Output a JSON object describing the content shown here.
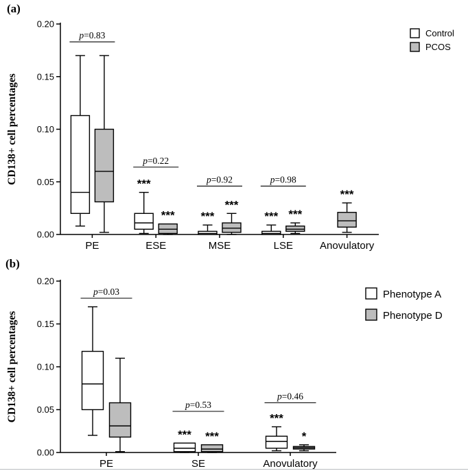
{
  "figure": {
    "background": "#ffffff",
    "panel_a_tag": "(a)",
    "panel_b_tag": "(b)"
  },
  "chart_data": [
    {
      "type": "box",
      "tag": "(a)",
      "title": "",
      "ylabel": "CD138+ cell percentages",
      "xlabel": "",
      "ylim": [
        0,
        0.2
      ],
      "yticks": [
        0,
        0.05,
        0.1,
        0.15,
        0.2
      ],
      "ytick_labels": [
        "0.00",
        "0.05",
        "0.10",
        "0.15",
        "0.20"
      ],
      "categories": [
        "PE",
        "ESE",
        "MSE",
        "LSE",
        "Anovulatory"
      ],
      "grid": false,
      "legend_position": "top-right",
      "series": [
        {
          "name": "Control",
          "fill": "#ffffff",
          "boxes": [
            {
              "low": 0.008,
              "q1": 0.02,
              "median": 0.04,
              "q3": 0.113,
              "high": 0.17,
              "stars": ""
            },
            {
              "low": 0.001,
              "q1": 0.005,
              "median": 0.011,
              "q3": 0.02,
              "high": 0.04,
              "stars": "***"
            },
            {
              "low": 0,
              "q1": 0,
              "median": 0.001,
              "q3": 0.003,
              "high": 0.009,
              "stars": "***"
            },
            {
              "low": 0,
              "q1": 0,
              "median": 0.001,
              "q3": 0.003,
              "high": 0.009,
              "stars": "***"
            },
            null
          ]
        },
        {
          "name": "PCOS",
          "fill": "#bdbdbd",
          "boxes": [
            {
              "low": 0.002,
              "q1": 0.031,
              "median": 0.06,
              "q3": 0.1,
              "high": 0.17,
              "stars": ""
            },
            {
              "low": 0,
              "q1": 0.001,
              "median": 0.005,
              "q3": 0.01,
              "high": 0.01,
              "stars": "***"
            },
            {
              "low": 0,
              "q1": 0.002,
              "median": 0.006,
              "q3": 0.011,
              "high": 0.02,
              "stars": "***"
            },
            {
              "low": 0.001,
              "q1": 0.003,
              "median": 0.005,
              "q3": 0.008,
              "high": 0.011,
              "stars": "***"
            },
            {
              "low": 0.002,
              "q1": 0.007,
              "median": 0.013,
              "q3": 0.021,
              "high": 0.03,
              "stars": "***"
            }
          ]
        }
      ],
      "comparisons": [
        {
          "category_index": 0,
          "label": "p=0.83",
          "height": 0.183
        },
        {
          "category_index": 1,
          "label": "p=0.22",
          "height": 0.064
        },
        {
          "category_index": 2,
          "label": "p=0.92",
          "height": 0.046
        },
        {
          "category_index": 3,
          "label": "p=0.98",
          "height": 0.046
        }
      ]
    },
    {
      "type": "box",
      "tag": "(b)",
      "title": "",
      "ylabel": "CD138+ cell percentages",
      "xlabel": "",
      "ylim": [
        0,
        0.2
      ],
      "yticks": [
        0,
        0.05,
        0.1,
        0.15,
        0.2
      ],
      "ytick_labels": [
        "0.00",
        "0.05",
        "0.10",
        "0.15",
        "0.20"
      ],
      "categories": [
        "PE",
        "SE",
        "Anovulatory"
      ],
      "grid": false,
      "legend_position": "top-right",
      "series": [
        {
          "name": "Phenotype A",
          "fill": "#ffffff",
          "boxes": [
            {
              "low": 0.02,
              "q1": 0.05,
              "median": 0.08,
              "q3": 0.118,
              "high": 0.17,
              "stars": ""
            },
            {
              "low": 0,
              "q1": 0.001,
              "median": 0.005,
              "q3": 0.011,
              "high": 0.011,
              "stars": "***"
            },
            {
              "low": 0.002,
              "q1": 0.005,
              "median": 0.013,
              "q3": 0.019,
              "high": 0.03,
              "stars": "***"
            }
          ]
        },
        {
          "name": "Phenotype D",
          "fill": "#bdbdbd",
          "boxes": [
            {
              "low": 0.001,
              "q1": 0.018,
              "median": 0.031,
              "q3": 0.058,
              "high": 0.11,
              "stars": ""
            },
            {
              "low": 0,
              "q1": 0.001,
              "median": 0.004,
              "q3": 0.009,
              "high": 0.009,
              "stars": "***"
            },
            {
              "low": 0.002,
              "q1": 0.004,
              "median": 0.0055,
              "q3": 0.007,
              "high": 0.009,
              "stars": "*"
            }
          ]
        }
      ],
      "comparisons": [
        {
          "category_index": 0,
          "label": "p=0.03",
          "height": 0.18
        },
        {
          "category_index": 1,
          "label": "p=0.53",
          "height": 0.048
        },
        {
          "category_index": 2,
          "label": "p=0.46",
          "height": 0.058
        }
      ]
    }
  ]
}
